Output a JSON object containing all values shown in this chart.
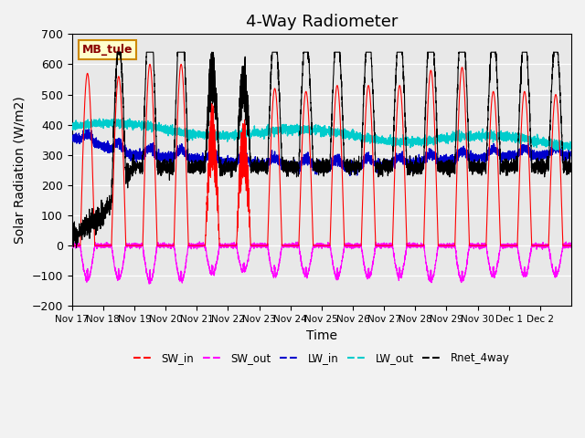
{
  "title": "4-Way Radiometer",
  "xlabel": "Time",
  "ylabel": "Solar Radiation (W/m2)",
  "ylim": [
    -200,
    700
  ],
  "n_days": 16,
  "x_tick_labels": [
    "Nov 17",
    "Nov 18",
    "Nov 19",
    "Nov 20",
    "Nov 21",
    "Nov 22",
    "Nov 23",
    "Nov 24",
    "Nov 25",
    "Nov 26",
    "Nov 27",
    "Nov 28",
    "Nov 29",
    "Nov 30",
    "Dec 1",
    "Dec 2"
  ],
  "colors": {
    "SW_in": "#ff0000",
    "SW_out": "#ff00ff",
    "LW_in": "#0000cc",
    "LW_out": "#00cccc",
    "Rnet_4way": "#000000"
  },
  "legend_label": "MB_tule",
  "legend_bg": "#ffffcc",
  "legend_border": "#cc8800",
  "bg_color": "#e8e8e8",
  "grid_color": "#ffffff",
  "title_fontsize": 13,
  "axis_fontsize": 10,
  "yticks": [
    -200,
    -100,
    0,
    100,
    200,
    300,
    400,
    500,
    600,
    700
  ],
  "sw_in_peaks": [
    570,
    560,
    600,
    600,
    480,
    430,
    520,
    510,
    530,
    530,
    530,
    580,
    590,
    510,
    510,
    500
  ],
  "pts_per_day": 288
}
